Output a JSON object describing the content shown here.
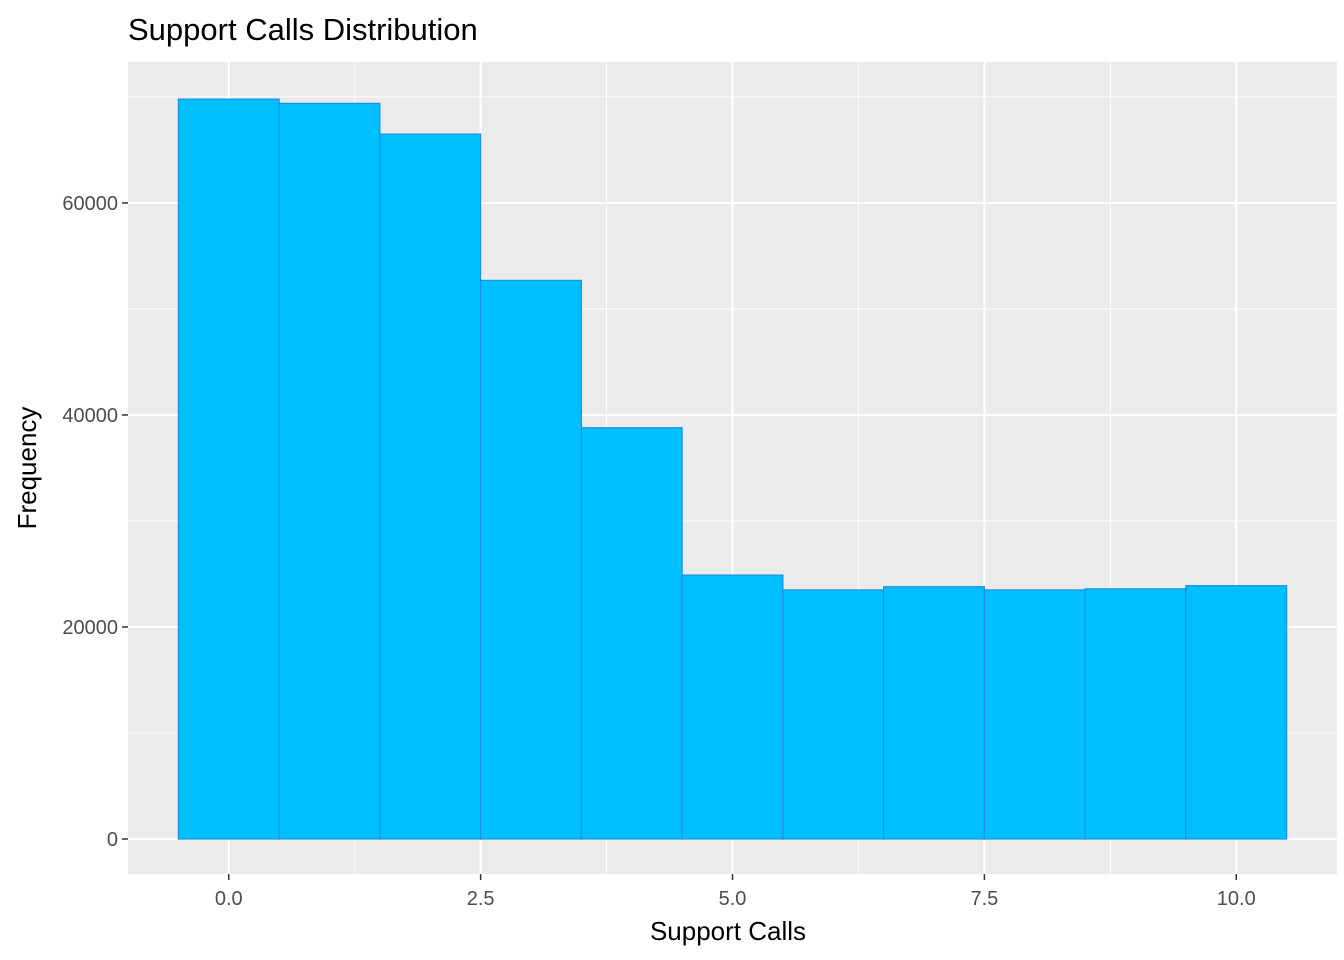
{
  "chart_data": {
    "type": "bar",
    "title": "Support Calls Distribution",
    "xlabel": "Support Calls",
    "ylabel": "Frequency",
    "bin_width": 1,
    "x": [
      0,
      1,
      2,
      3,
      4,
      5,
      6,
      7,
      8,
      9,
      10
    ],
    "values": [
      69800,
      69400,
      66500,
      52700,
      38800,
      24900,
      23500,
      23800,
      23500,
      23600,
      23900
    ],
    "xlim": [
      -1,
      11
    ],
    "ylim": [
      -3300,
      73300
    ],
    "xticks": [
      0,
      2.5,
      5,
      7.5,
      10
    ],
    "xtick_labels": [
      "0.0",
      "2.5",
      "5.0",
      "7.5",
      "10.0"
    ],
    "yticks": [
      0,
      20000,
      40000,
      60000
    ],
    "ytick_labels": [
      "0",
      "20000",
      "40000",
      "60000"
    ],
    "grid": true,
    "legend": "none",
    "colors": {
      "bar_fill": "#00BFFF",
      "bar_outline": "#1E90E0",
      "panel_background": "#EBEBEB",
      "grid": "#FFFFFF"
    }
  }
}
